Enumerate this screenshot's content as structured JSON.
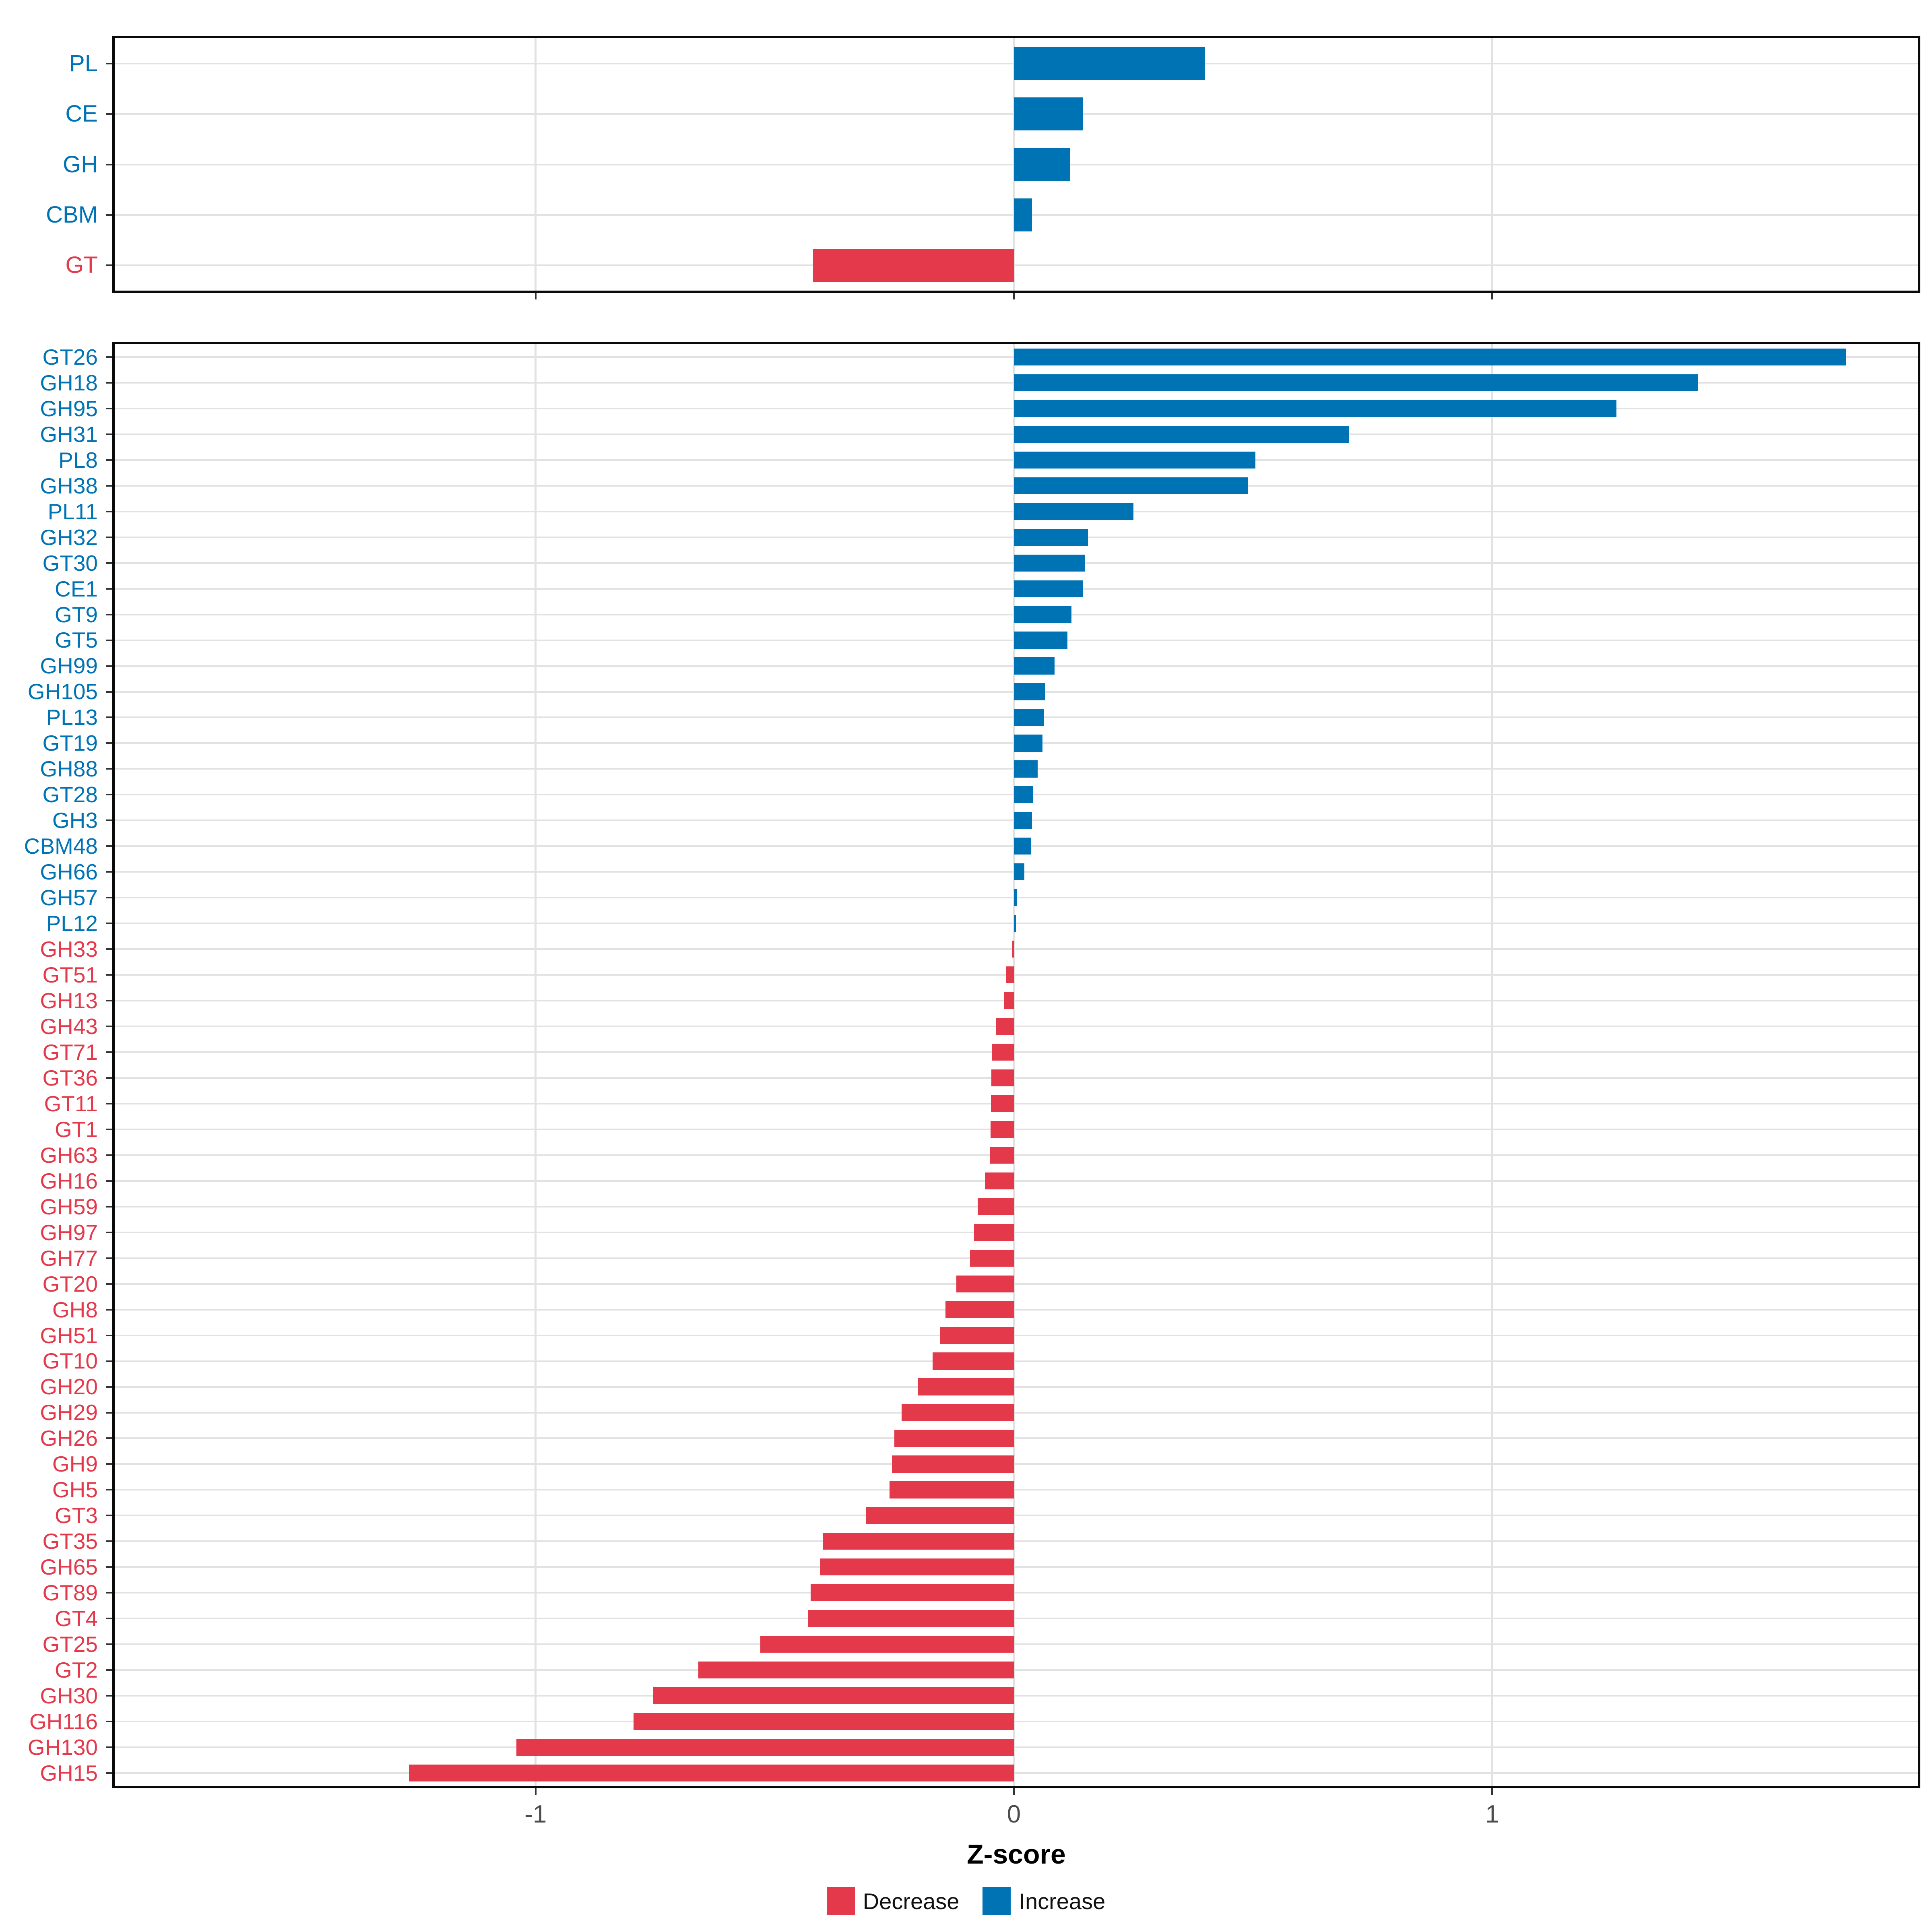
{
  "colors": {
    "increase": "#0073B4",
    "decrease": "#E3394B",
    "grid": "#E2E2E2",
    "panel_border": "#0A0A0A",
    "tick": "#333333",
    "tick_label": "#4D4D4D"
  },
  "axis": {
    "xlabel": "Z-score",
    "xmin": -1.88,
    "xmax": 1.89,
    "ticks": [
      {
        "label": "-1",
        "value": -1
      },
      {
        "label": "0",
        "value": 0
      },
      {
        "label": "1",
        "value": 1
      }
    ]
  },
  "legend": {
    "items": [
      {
        "label": "Decrease",
        "color_key": "decrease"
      },
      {
        "label": "Increase",
        "color_key": "increase"
      }
    ]
  },
  "chart_data": [
    {
      "type": "bar",
      "orientation": "horizontal",
      "panel": "top",
      "title": "",
      "xlabel": "Z-score",
      "xlim": [
        -1.88,
        1.89
      ],
      "grid": true,
      "categories": [
        "PL",
        "CE",
        "GH",
        "CBM",
        "GT"
      ],
      "values": [
        0.4,
        0.145,
        0.118,
        0.038,
        -0.42
      ]
    },
    {
      "type": "bar",
      "orientation": "horizontal",
      "panel": "bottom",
      "title": "",
      "xlabel": "Z-score",
      "xlim": [
        -1.88,
        1.89
      ],
      "grid": true,
      "categories": [
        "GT26",
        "GH18",
        "GH95",
        "GH31",
        "PL8",
        "GH38",
        "PL11",
        "GH32",
        "GT30",
        "CE1",
        "GT9",
        "GT5",
        "GH99",
        "GH105",
        "PL13",
        "GT19",
        "GH88",
        "GT28",
        "GH3",
        "CBM48",
        "GH66",
        "GH57",
        "PL12",
        "GH33",
        "GT51",
        "GH13",
        "GH43",
        "GT71",
        "GT36",
        "GT11",
        "GT1",
        "GH63",
        "GH16",
        "GH59",
        "GH97",
        "GH77",
        "GT20",
        "GH8",
        "GH51",
        "GT10",
        "GH20",
        "GH29",
        "GH26",
        "GH9",
        "GH5",
        "GT3",
        "GT35",
        "GH65",
        "GT89",
        "GT4",
        "GT25",
        "GT2",
        "GH30",
        "GH116",
        "GH130",
        "GH15"
      ],
      "values": [
        1.74,
        1.43,
        1.26,
        0.7,
        0.505,
        0.49,
        0.25,
        0.155,
        0.148,
        0.144,
        0.12,
        0.112,
        0.085,
        0.066,
        0.063,
        0.06,
        0.05,
        0.04,
        0.038,
        0.036,
        0.022,
        0.007,
        0.004,
        -0.004,
        -0.017,
        -0.021,
        -0.037,
        -0.046,
        -0.047,
        -0.048,
        -0.049,
        -0.05,
        -0.061,
        -0.076,
        -0.083,
        -0.092,
        -0.12,
        -0.143,
        -0.155,
        -0.17,
        -0.2,
        -0.235,
        -0.25,
        -0.255,
        -0.26,
        -0.31,
        -0.4,
        -0.405,
        -0.425,
        -0.43,
        -0.53,
        -0.66,
        -0.755,
        -0.795,
        -1.04,
        -1.265
      ]
    }
  ]
}
